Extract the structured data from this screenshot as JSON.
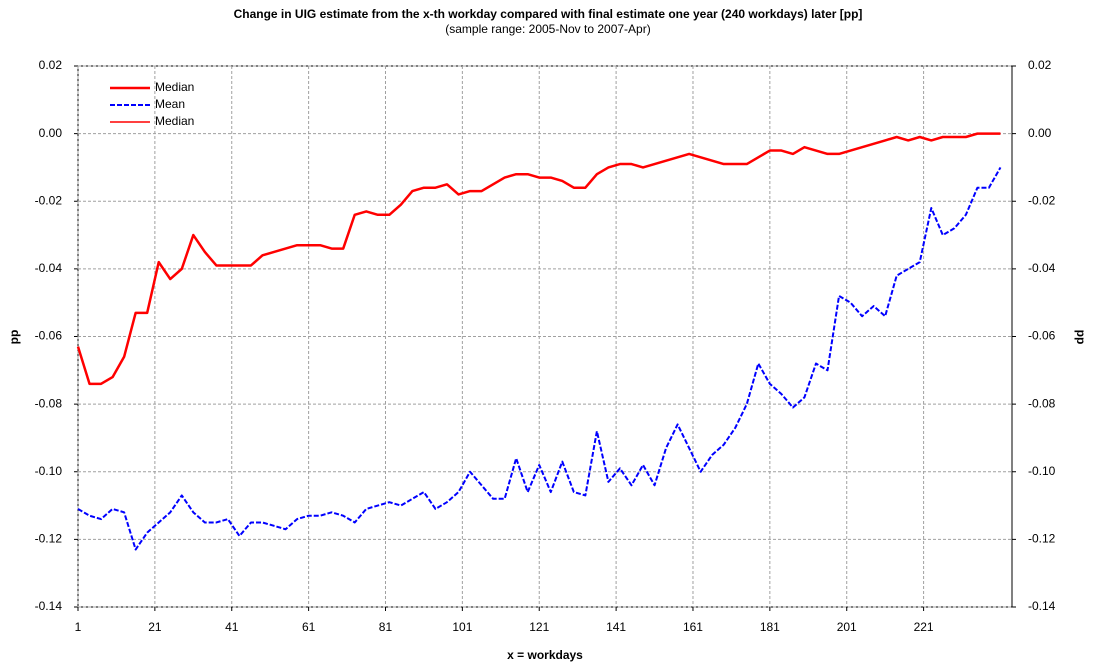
{
  "chart_data": {
    "type": "line",
    "title": "Change in UIG estimate from the x-th workday compared with final estimate one year (240 workdays) later [pp]",
    "subtitle": "(sample range: 2005-Nov to 2007-Apr)",
    "x_label": "x = workdays",
    "y_label": "pp",
    "y2_label": "pp",
    "x": [
      1,
      4,
      7,
      10,
      13,
      16,
      19,
      22,
      25,
      28,
      31,
      34,
      37,
      40,
      43,
      46,
      49,
      52,
      55,
      58,
      61,
      64,
      67,
      70,
      73,
      76,
      79,
      82,
      85,
      88,
      91,
      94,
      97,
      100,
      103,
      106,
      109,
      112,
      115,
      118,
      121,
      124,
      127,
      130,
      133,
      136,
      139,
      142,
      145,
      148,
      151,
      154,
      157,
      160,
      163,
      166,
      169,
      172,
      175,
      178,
      181,
      184,
      187,
      190,
      193,
      196,
      199,
      202,
      205,
      208,
      211,
      214,
      217,
      220,
      223,
      226,
      229,
      232,
      235,
      238,
      241
    ],
    "series": [
      {
        "name": "Median",
        "color": "#ff0000",
        "dash": false,
        "width": 2.5,
        "values": [
          -0.063,
          -0.074,
          -0.074,
          -0.072,
          -0.066,
          -0.053,
          -0.053,
          -0.038,
          -0.043,
          -0.04,
          -0.03,
          -0.035,
          -0.039,
          -0.039,
          -0.039,
          -0.039,
          -0.036,
          -0.035,
          -0.034,
          -0.033,
          -0.033,
          -0.033,
          -0.034,
          -0.034,
          -0.024,
          -0.023,
          -0.024,
          -0.024,
          -0.021,
          -0.017,
          -0.016,
          -0.016,
          -0.015,
          -0.018,
          -0.017,
          -0.017,
          -0.015,
          -0.013,
          -0.012,
          -0.012,
          -0.013,
          -0.013,
          -0.014,
          -0.016,
          -0.016,
          -0.012,
          -0.01,
          -0.009,
          -0.009,
          -0.01,
          -0.009,
          -0.008,
          -0.007,
          -0.006,
          -0.007,
          -0.008,
          -0.009,
          -0.009,
          -0.009,
          -0.007,
          -0.005,
          -0.005,
          -0.006,
          -0.004,
          -0.005,
          -0.006,
          -0.006,
          -0.005,
          -0.004,
          -0.003,
          -0.002,
          -0.001,
          -0.002,
          -0.001,
          -0.002,
          -0.001,
          -0.001,
          -0.001,
          0,
          0,
          0
        ]
      },
      {
        "name": "Mean",
        "color": "#0000ff",
        "dash": true,
        "width": 2,
        "values": [
          -0.111,
          -0.113,
          -0.114,
          -0.111,
          -0.112,
          -0.123,
          -0.118,
          -0.115,
          -0.112,
          -0.107,
          -0.112,
          -0.115,
          -0.115,
          -0.114,
          -0.119,
          -0.115,
          -0.115,
          -0.116,
          -0.117,
          -0.114,
          -0.113,
          -0.113,
          -0.112,
          -0.113,
          -0.115,
          -0.111,
          -0.11,
          -0.109,
          -0.11,
          -0.108,
          -0.106,
          -0.111,
          -0.109,
          -0.106,
          -0.1,
          -0.104,
          -0.108,
          -0.108,
          -0.096,
          -0.106,
          -0.098,
          -0.106,
          -0.097,
          -0.106,
          -0.107,
          -0.088,
          -0.103,
          -0.099,
          -0.104,
          -0.098,
          -0.104,
          -0.093,
          -0.086,
          -0.093,
          -0.1,
          -0.095,
          -0.092,
          -0.087,
          -0.08,
          -0.068,
          -0.074,
          -0.077,
          -0.081,
          -0.078,
          -0.068,
          -0.07,
          -0.048,
          -0.05,
          -0.054,
          -0.051,
          -0.054,
          -0.042,
          -0.04,
          -0.038,
          -0.022,
          -0.03,
          -0.028,
          -0.024,
          -0.016,
          -0.016,
          -0.01
        ]
      },
      {
        "name": "Median",
        "color": "#ff0000",
        "dash": false,
        "width": 1.5,
        "axis": "y2",
        "values": [
          -0.063,
          -0.074,
          -0.074,
          -0.072,
          -0.066,
          -0.053,
          -0.053,
          -0.038,
          -0.043,
          -0.04,
          -0.03,
          -0.035,
          -0.039,
          -0.039,
          -0.039,
          -0.039,
          -0.036,
          -0.035,
          -0.034,
          -0.033,
          -0.033,
          -0.033,
          -0.034,
          -0.034,
          -0.024,
          -0.023,
          -0.024,
          -0.024,
          -0.021,
          -0.017,
          -0.016,
          -0.016,
          -0.015,
          -0.018,
          -0.017,
          -0.017,
          -0.015,
          -0.013,
          -0.012,
          -0.012,
          -0.013,
          -0.013,
          -0.014,
          -0.016,
          -0.016,
          -0.012,
          -0.01,
          -0.009,
          -0.009,
          -0.01,
          -0.009,
          -0.008,
          -0.007,
          -0.006,
          -0.007,
          -0.008,
          -0.009,
          -0.009,
          -0.009,
          -0.007,
          -0.005,
          -0.005,
          -0.006,
          -0.004,
          -0.005,
          -0.006,
          -0.006,
          -0.005,
          -0.004,
          -0.003,
          -0.002,
          -0.001,
          -0.002,
          -0.001,
          -0.002,
          -0.001,
          -0.001,
          -0.001,
          0,
          0,
          0
        ]
      }
    ],
    "xlim": [
      1,
      244
    ],
    "xticks": [
      1,
      21,
      41,
      61,
      81,
      101,
      121,
      141,
      161,
      181,
      201,
      221
    ],
    "ylim": [
      -0.14,
      0.02
    ],
    "yticks": [
      0.02,
      {
        "value": 0,
        "label": "0.00"
      },
      -0.02,
      -0.04,
      -0.06,
      -0.08,
      {
        "value": -0.1,
        "label": "-0.10"
      },
      -0.12,
      -0.14
    ],
    "y2lim": [
      -0.14,
      0.02
    ],
    "y2ticks": [
      0.02,
      {
        "value": 0,
        "label": "0.00"
      },
      -0.02,
      -0.04,
      -0.06,
      -0.08,
      {
        "value": -0.1,
        "label": "-0.10"
      },
      -0.12,
      -0.14
    ],
    "grid": true,
    "legend": "top-left"
  }
}
